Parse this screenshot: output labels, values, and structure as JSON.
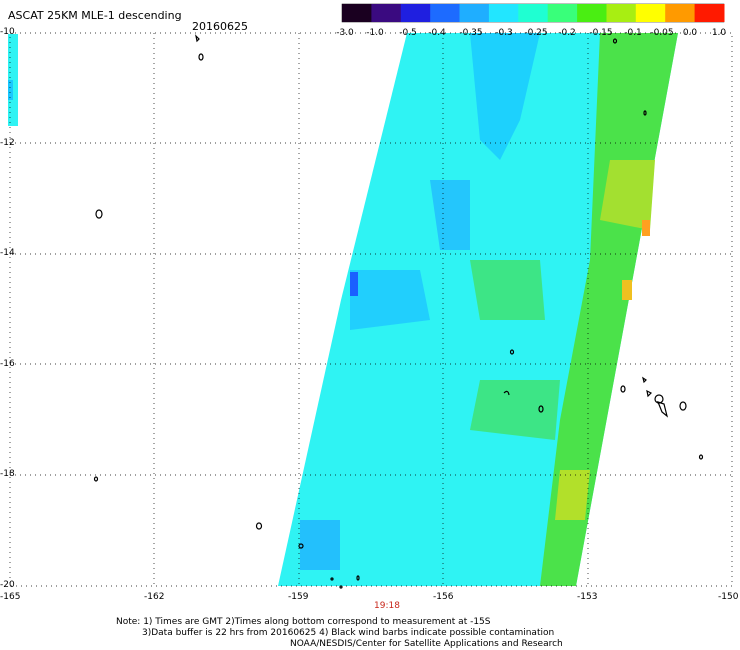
{
  "header": {
    "title": "ASCAT 25KM MLE-1 descending",
    "date": "20160625"
  },
  "colorbar": {
    "labels": [
      "-3.0",
      "-1.0",
      "-0.5",
      "-0.4",
      "-0.35",
      "-0.3",
      "-0.25",
      "-0.2",
      "-0.15",
      "-0.1",
      "-0.05",
      "0.0",
      "1.0"
    ],
    "colors": [
      "#1a0020",
      "#3a0a80",
      "#1f1fe0",
      "#1d6bff",
      "#1faeff",
      "#22e6ff",
      "#1fffd2",
      "#39ff7a",
      "#4aee12",
      "#a8ee12",
      "#ffff00",
      "#ff9a00",
      "#ff1a00"
    ]
  },
  "axes": {
    "y_labels": [
      "-10",
      "-12",
      "-14",
      "-16",
      "-18",
      "-20"
    ],
    "x_labels": [
      "-165",
      "-162",
      "-159",
      "-156",
      "-153",
      "-150"
    ],
    "xlim": [
      -165,
      -150
    ],
    "ylim": [
      -20,
      -10
    ]
  },
  "time_label": "19:18",
  "notes": {
    "line1": "Note: 1) Times are GMT 2)Times along bottom correspond to measurement at -15S",
    "line2": "3)Data buffer is 22 hrs from 20160625 4) Black wind barbs indicate possible contamination",
    "line3": "NOAA/NESDIS/Center for Satellite Applications and Research"
  }
}
